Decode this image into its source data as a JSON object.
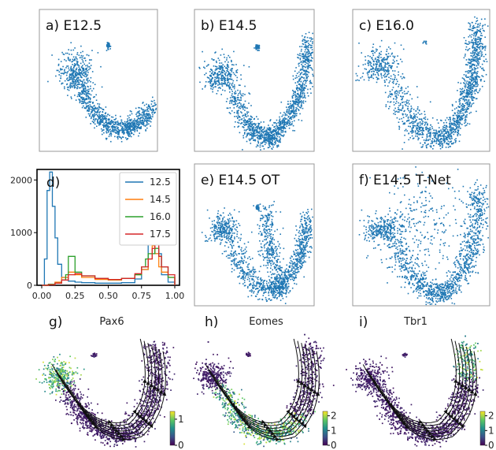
{
  "chart_data": [
    {
      "panel": "a",
      "type": "scatter",
      "title": "a) E12.5",
      "shape": "U-curve, dense left cluster"
    },
    {
      "panel": "b",
      "type": "scatter",
      "title": "b) E14.5",
      "shape": "V-curve"
    },
    {
      "panel": "c",
      "type": "scatter",
      "title": "c) E16.0",
      "shape": "V-curve, denser right arm"
    },
    {
      "panel": "d",
      "type": "line",
      "title": "d)",
      "xlim": [
        0,
        1
      ],
      "ylim": [
        0,
        2200
      ],
      "xticks": [
        "0.00",
        "0.25",
        "0.50",
        "0.75",
        "1.00"
      ],
      "yticks": [
        "0",
        "1000",
        "2000"
      ],
      "legend_position": "top-right",
      "series": [
        {
          "name": "12.5",
          "color": "#1f77b4",
          "x": [
            0.0,
            0.02,
            0.04,
            0.06,
            0.08,
            0.1,
            0.12,
            0.15,
            0.2,
            0.25,
            0.3,
            0.4,
            0.5,
            0.6,
            0.7,
            0.75,
            0.8,
            0.85,
            0.9,
            0.95,
            1.0
          ],
          "y": [
            0,
            500,
            1800,
            2150,
            1500,
            900,
            400,
            150,
            80,
            60,
            50,
            40,
            40,
            50,
            120,
            300,
            900,
            600,
            200,
            60,
            0
          ]
        },
        {
          "name": "14.5",
          "color": "#ff7f0e",
          "x": [
            0.0,
            0.05,
            0.1,
            0.15,
            0.2,
            0.25,
            0.3,
            0.4,
            0.5,
            0.6,
            0.7,
            0.75,
            0.8,
            0.83,
            0.85,
            0.88,
            0.9,
            0.95,
            1.0
          ],
          "y": [
            0,
            20,
            60,
            150,
            250,
            200,
            150,
            110,
            100,
            130,
            200,
            300,
            500,
            750,
            600,
            350,
            250,
            150,
            0
          ]
        },
        {
          "name": "16.0",
          "color": "#2ca02c",
          "x": [
            0.0,
            0.05,
            0.1,
            0.15,
            0.18,
            0.2,
            0.25,
            0.3,
            0.4,
            0.5,
            0.6,
            0.7,
            0.75,
            0.78,
            0.8,
            0.85,
            0.88,
            0.9,
            0.95,
            1.0
          ],
          "y": [
            0,
            20,
            40,
            100,
            200,
            550,
            250,
            180,
            130,
            110,
            130,
            200,
            350,
            500,
            600,
            700,
            550,
            350,
            150,
            0
          ]
        },
        {
          "name": "17.5",
          "color": "#d62728",
          "x": [
            0.0,
            0.05,
            0.1,
            0.15,
            0.2,
            0.25,
            0.3,
            0.4,
            0.5,
            0.6,
            0.7,
            0.75,
            0.8,
            0.83,
            0.85,
            0.88,
            0.9,
            0.95,
            1.0
          ],
          "y": [
            0,
            10,
            40,
            100,
            200,
            220,
            180,
            130,
            110,
            130,
            220,
            350,
            500,
            700,
            850,
            550,
            350,
            200,
            0
          ]
        }
      ]
    },
    {
      "panel": "e",
      "type": "scatter",
      "title": "e) E14.5 OT",
      "shape": "V-curve with inner arm"
    },
    {
      "panel": "f",
      "type": "scatter",
      "title": "f) E14.5 T-Net",
      "shape": "V-curve, diffuse upper spread"
    },
    {
      "panel": "g",
      "type": "scatter",
      "label": "g)",
      "gene": "Pax6",
      "colormap": "viridis",
      "colorbar_ticks": [
        "0",
        "1"
      ],
      "colorbar_range": [
        0,
        1.3
      ],
      "high_region": "left cluster"
    },
    {
      "panel": "h",
      "type": "scatter",
      "label": "h)",
      "gene": "Eomes",
      "colormap": "viridis",
      "colorbar_ticks": [
        "0",
        "1",
        "2"
      ],
      "colorbar_range": [
        0,
        2.3
      ],
      "high_region": "bottom of curve"
    },
    {
      "panel": "i",
      "type": "scatter",
      "label": "i)",
      "gene": "Tbr1",
      "colormap": "viridis",
      "colorbar_ticks": [
        "0",
        "1",
        "2"
      ],
      "colorbar_range": [
        0,
        2.3
      ],
      "high_region": "top of right arm"
    }
  ]
}
